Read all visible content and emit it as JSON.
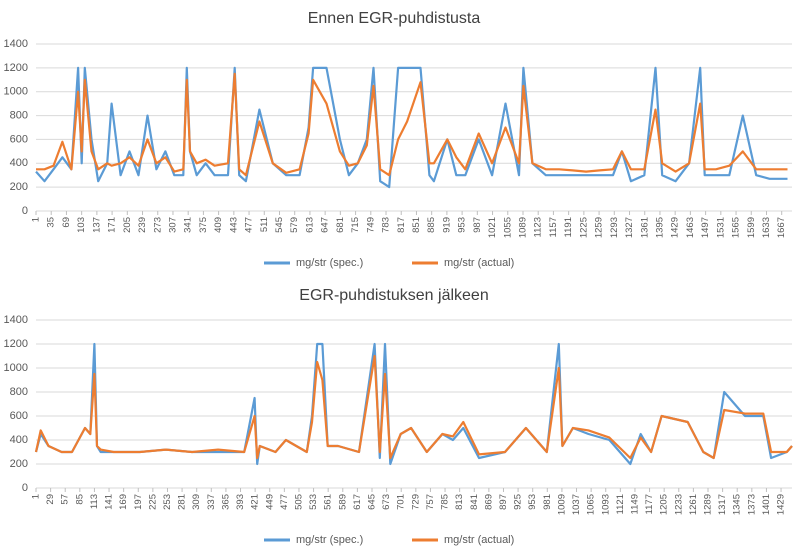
{
  "chart_data": [
    {
      "type": "line",
      "title": "Ennen EGR-puhdistusta",
      "x": [
        1,
        20,
        40,
        60,
        80,
        95,
        103,
        110,
        125,
        140,
        160,
        170,
        190,
        210,
        230,
        250,
        270,
        290,
        310,
        330,
        338,
        345,
        360,
        380,
        400,
        430,
        445,
        455,
        470,
        500,
        530,
        560,
        590,
        610,
        620,
        650,
        680,
        700,
        720,
        740,
        755,
        770,
        790,
        810,
        830,
        860,
        880,
        890,
        920,
        940,
        960,
        990,
        1020,
        1050,
        1080,
        1090,
        1110,
        1140,
        1170,
        1200,
        1230,
        1260,
        1290,
        1310,
        1330,
        1360,
        1385,
        1400,
        1430,
        1460,
        1485,
        1495,
        1520,
        1550,
        1580,
        1610,
        1640,
        1680
      ],
      "series": [
        {
          "name": "mg/str (spec.)",
          "color": "#5b9bd5",
          "values": [
            330,
            250,
            350,
            450,
            350,
            1200,
            400,
            1200,
            600,
            250,
            400,
            900,
            300,
            500,
            300,
            800,
            350,
            500,
            300,
            300,
            1200,
            500,
            300,
            400,
            300,
            300,
            1200,
            300,
            250,
            850,
            400,
            300,
            300,
            700,
            1200,
            1200,
            600,
            300,
            400,
            600,
            1200,
            250,
            200,
            1200,
            1200,
            1200,
            300,
            250,
            600,
            300,
            300,
            600,
            300,
            900,
            300,
            1200,
            400,
            300,
            300,
            300,
            300,
            300,
            300,
            500,
            250,
            300,
            1200,
            300,
            250,
            400,
            1200,
            300,
            300,
            300,
            800,
            300,
            270,
            270
          ]
        },
        {
          "name": "mg/str (actual)",
          "color": "#ed7d31",
          "values": [
            350,
            350,
            380,
            580,
            350,
            1000,
            500,
            1100,
            500,
            350,
            400,
            380,
            400,
            450,
            380,
            600,
            400,
            450,
            330,
            350,
            1100,
            500,
            400,
            430,
            380,
            400,
            1150,
            350,
            300,
            750,
            400,
            320,
            350,
            650,
            1100,
            900,
            500,
            380,
            400,
            550,
            1050,
            350,
            300,
            600,
            750,
            1080,
            400,
            400,
            600,
            450,
            350,
            650,
            400,
            700,
            400,
            1050,
            400,
            350,
            350,
            340,
            330,
            340,
            350,
            500,
            350,
            350,
            850,
            400,
            330,
            400,
            900,
            350,
            350,
            380,
            500,
            350,
            350,
            350
          ]
        }
      ],
      "xlim": [
        1,
        1690
      ],
      "xticks": [
        1,
        35,
        69,
        103,
        137,
        171,
        205,
        239,
        273,
        307,
        341,
        375,
        409,
        443,
        477,
        511,
        545,
        579,
        613,
        647,
        681,
        715,
        749,
        783,
        817,
        851,
        885,
        919,
        953,
        987,
        1021,
        1055,
        1089,
        1123,
        1157,
        1191,
        1225,
        1259,
        1293,
        1327,
        1361,
        1395,
        1429,
        1463,
        1497,
        1531,
        1565,
        1599,
        1633,
        1667
      ],
      "ylim": [
        0,
        1400
      ],
      "yticks": [
        0,
        200,
        400,
        600,
        800,
        1000,
        1200,
        1400
      ],
      "grid": true,
      "legend": "bottom"
    },
    {
      "type": "line",
      "title": "EGR-puhdistuksen jälkeen",
      "x": [
        1,
        10,
        25,
        50,
        70,
        95,
        105,
        113,
        118,
        125,
        150,
        180,
        200,
        250,
        300,
        350,
        400,
        420,
        425,
        430,
        460,
        480,
        500,
        520,
        530,
        540,
        550,
        560,
        580,
        620,
        650,
        660,
        670,
        680,
        700,
        720,
        750,
        780,
        800,
        820,
        850,
        900,
        940,
        980,
        1003,
        1010,
        1030,
        1060,
        1100,
        1140,
        1160,
        1180,
        1200,
        1250,
        1280,
        1300,
        1320,
        1360,
        1395,
        1410,
        1440,
        1450
      ],
      "series": [
        {
          "name": "mg/str (spec.)",
          "color": "#5b9bd5",
          "values": [
            300,
            450,
            350,
            300,
            300,
            500,
            450,
            1200,
            350,
            300,
            300,
            300,
            300,
            320,
            300,
            300,
            300,
            750,
            200,
            350,
            300,
            400,
            350,
            300,
            600,
            1200,
            1200,
            350,
            350,
            300,
            1200,
            250,
            1200,
            200,
            450,
            500,
            300,
            450,
            400,
            500,
            250,
            300,
            500,
            300,
            1200,
            350,
            500,
            450,
            400,
            200,
            450,
            300,
            600,
            550,
            300,
            250,
            800,
            600,
            600,
            250,
            300,
            350
          ]
        },
        {
          "name": "mg/str (actual)",
          "color": "#ed7d31",
          "values": [
            300,
            480,
            350,
            300,
            300,
            500,
            450,
            950,
            350,
            320,
            300,
            300,
            300,
            320,
            300,
            320,
            300,
            600,
            250,
            350,
            300,
            400,
            350,
            300,
            550,
            1050,
            900,
            350,
            350,
            300,
            1100,
            300,
            950,
            250,
            450,
            500,
            300,
            450,
            430,
            550,
            280,
            300,
            500,
            300,
            1000,
            350,
            500,
            480,
            420,
            250,
            420,
            300,
            600,
            550,
            300,
            250,
            650,
            620,
            620,
            300,
            300,
            350
          ]
        }
      ],
      "xlim": [
        1,
        1450
      ],
      "xticks": [
        1,
        29,
        57,
        85,
        113,
        141,
        169,
        197,
        225,
        253,
        281,
        309,
        337,
        365,
        393,
        421,
        449,
        477,
        505,
        533,
        561,
        589,
        617,
        645,
        673,
        701,
        729,
        757,
        785,
        813,
        841,
        869,
        897,
        925,
        953,
        981,
        1009,
        1037,
        1065,
        1093,
        1121,
        1149,
        1177,
        1205,
        1233,
        1261,
        1289,
        1317,
        1345,
        1373,
        1401,
        1429
      ],
      "ylim": [
        0,
        1400
      ],
      "yticks": [
        0,
        200,
        400,
        600,
        800,
        1000,
        1200,
        1400
      ],
      "grid": true,
      "legend": "bottom"
    }
  ]
}
